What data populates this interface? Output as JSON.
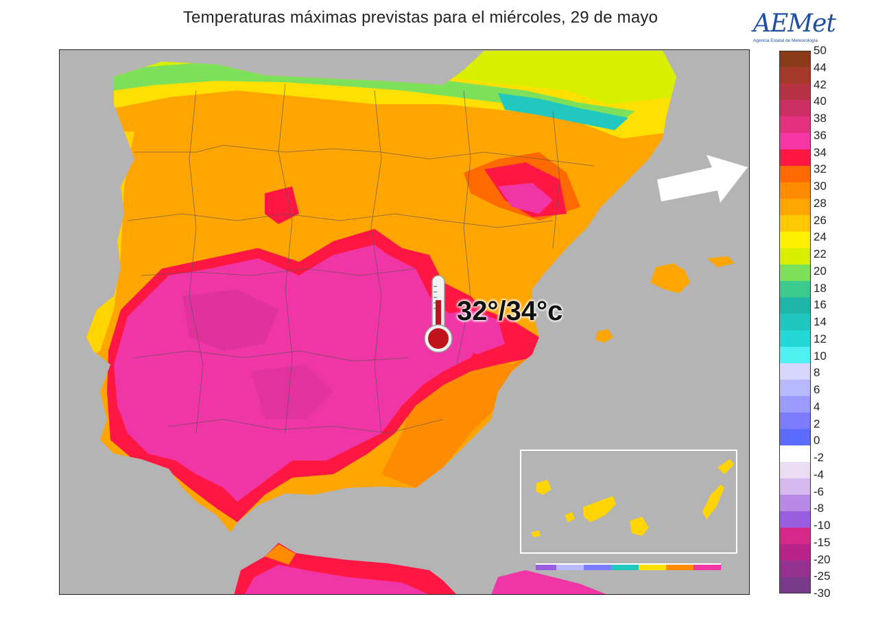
{
  "title": "Temperaturas máximas previstas para el miércoles, 29 de mayo",
  "logo": {
    "name": "AEMet",
    "subtitle": "Agencia Estatal de Meteorología"
  },
  "callout": {
    "text": "32°/34°c",
    "icon": "thermometer-icon"
  },
  "arrow_icon": "arrow-right-icon",
  "legend": {
    "labels": [
      "50",
      "44",
      "42",
      "40",
      "38",
      "36",
      "34",
      "32",
      "30",
      "28",
      "26",
      "24",
      "22",
      "20",
      "18",
      "16",
      "14",
      "12",
      "10",
      "8",
      "6",
      "4",
      "2",
      "0",
      "-2",
      "-4",
      "-6",
      "-8",
      "-10",
      "-15",
      "-20",
      "-25",
      "-30"
    ],
    "colors": [
      "#8b3a1a",
      "#a63a2a",
      "#b83245",
      "#cc2f63",
      "#e4307f",
      "#f536a4",
      "#ff1744",
      "#ff6a00",
      "#ff8c00",
      "#ffa500",
      "#ffc800",
      "#fff000",
      "#d8f000",
      "#7ce05a",
      "#3cc98e",
      "#1fb5a8",
      "#1fc7c0",
      "#25d8d8",
      "#4ef0f0",
      "#d6d6ff",
      "#b8b8ff",
      "#9a9aff",
      "#7c7cff",
      "#5c6cff",
      "#ffffff",
      "#eadcf2",
      "#d4b8ee",
      "#b88ae6",
      "#9a5fe0",
      "#d6288a",
      "#b8248a",
      "#95318f",
      "#7a3a8a"
    ]
  },
  "colors": {
    "sea": "#b4b4b4",
    "land_pink": "#f035a6",
    "land_red": "#ff1744",
    "land_orange": "#ff8c00",
    "land_yellow": "#ffd400",
    "land_cyan": "#22c8c0"
  }
}
